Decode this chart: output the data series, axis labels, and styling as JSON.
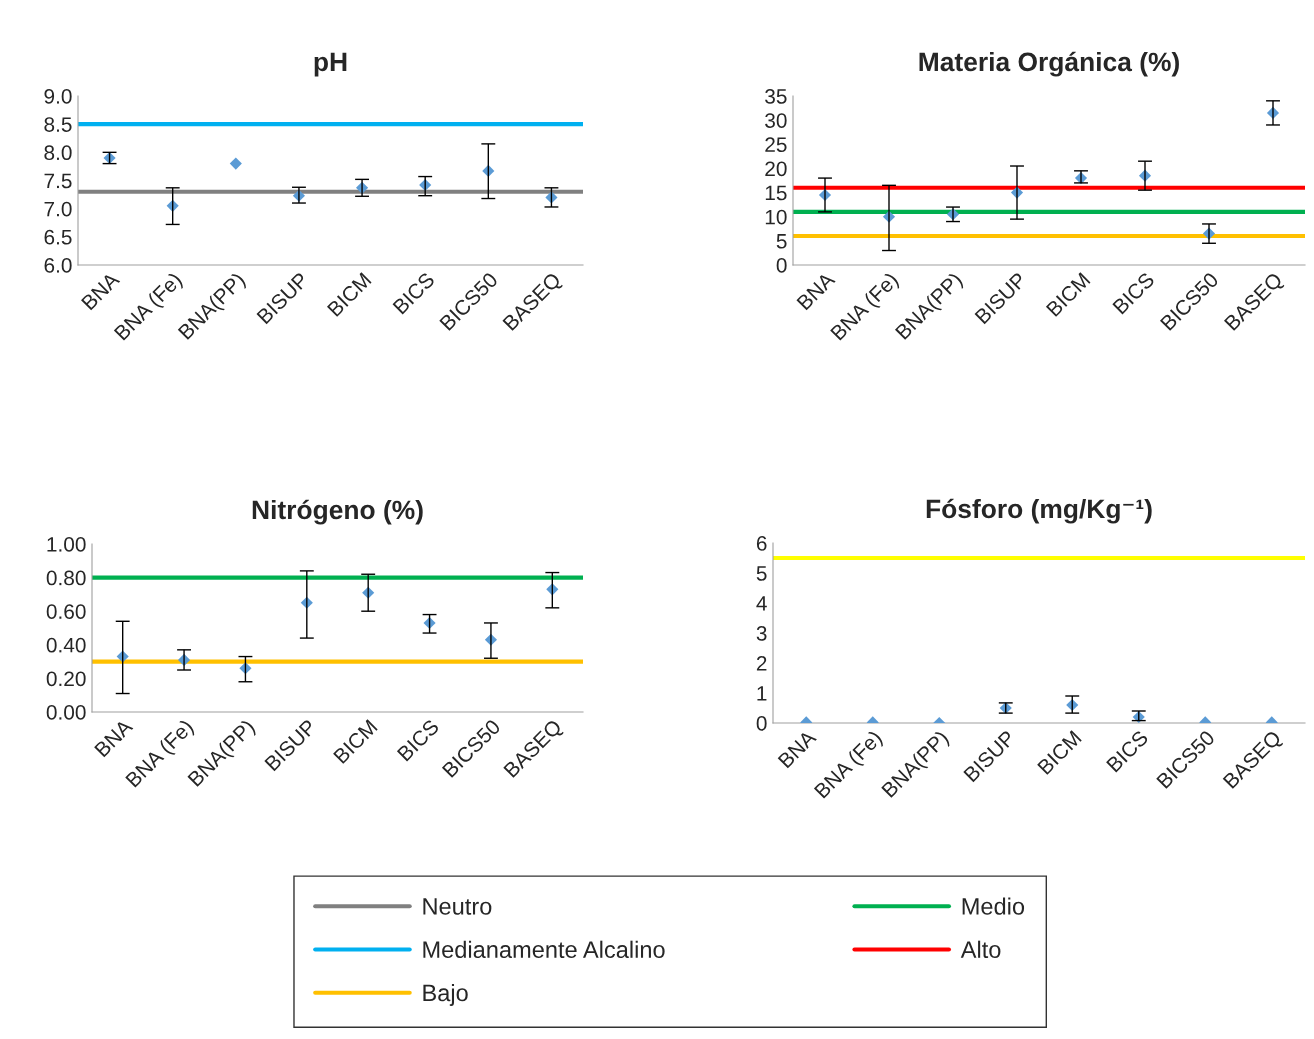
{
  "chart_data": [
    {
      "type": "scatter",
      "title": "pH",
      "categories": [
        "BNA",
        "BNA (Fe)",
        "BNA(PP)",
        "BISUP",
        "BICM",
        "BICS",
        "BICS50",
        "BASEQ"
      ],
      "marker": "diamond",
      "legend": "bottom",
      "series": [
        {
          "color": "#5b9bd5",
          "values": [
            7.9,
            7.05,
            7.8,
            7.23,
            7.37,
            7.42,
            7.67,
            7.2
          ],
          "errors": [
            [
              7.8,
              8.0
            ],
            [
              6.72,
              7.37
            ],
            null,
            [
              7.1,
              7.38
            ],
            [
              7.22,
              7.52
            ],
            [
              7.23,
              7.57
            ],
            [
              7.18,
              8.15
            ],
            [
              7.03,
              7.37
            ]
          ]
        }
      ],
      "ylim": [
        6.0,
        9.0
      ],
      "yticks": [
        {
          "value": 6.0,
          "label": "6.0"
        },
        {
          "value": 6.5,
          "label": "6.5"
        },
        {
          "value": 7.0,
          "label": "7.0"
        },
        {
          "value": 7.5,
          "label": "7.5"
        },
        {
          "value": 8.0,
          "label": "8.0"
        },
        {
          "value": 8.5,
          "label": "8.5"
        },
        {
          "value": 9.0,
          "label": "9.0"
        }
      ],
      "ref_lines": [
        {
          "axis": "y",
          "value": 7.3,
          "label": "Neutro",
          "color": "#808080"
        },
        {
          "axis": "y",
          "value": 8.5,
          "label": "Medianamente Alcalino",
          "color": "#00b0f0"
        }
      ]
    },
    {
      "type": "scatter",
      "title": "Materia Orgánica (%)",
      "categories": [
        "BNA",
        "BNA (Fe)",
        "BNA(PP)",
        "BISUP",
        "BICM",
        "BICS",
        "BICS50",
        "BASEQ"
      ],
      "marker": "diamond",
      "legend": "bottom",
      "series": [
        {
          "color": "#5b9bd5",
          "values": [
            14.5,
            10,
            10.5,
            15,
            18,
            18.5,
            6.5,
            31.5
          ],
          "errors": [
            [
              11,
              18
            ],
            [
              3,
              16.5
            ],
            [
              9,
              12
            ],
            [
              9.5,
              20.5
            ],
            [
              17,
              19.5
            ],
            [
              15.5,
              21.5
            ],
            [
              4.5,
              8.5
            ],
            [
              29,
              34
            ]
          ]
        }
      ],
      "ylim": [
        0,
        35
      ],
      "yticks": [
        0,
        5,
        10,
        15,
        20,
        25,
        30,
        35
      ],
      "ref_lines": [
        {
          "axis": "y",
          "value": 6,
          "label": "Bajo",
          "color": "#ffc000"
        },
        {
          "axis": "y",
          "value": 11,
          "label": "Medio",
          "color": "#00b050"
        },
        {
          "axis": "y",
          "value": 16,
          "label": "Alto",
          "color": "#ff0000"
        }
      ]
    },
    {
      "type": "scatter",
      "title": "Nitrógeno (%)",
      "categories": [
        "BNA",
        "BNA (Fe)",
        "BNA(PP)",
        "BISUP",
        "BICM",
        "BICS",
        "BICS50",
        "BASEQ"
      ],
      "marker": "diamond",
      "series": [
        {
          "color": "#5b9bd5",
          "values": [
            0.33,
            0.31,
            0.26,
            0.65,
            0.71,
            0.53,
            0.43,
            0.73
          ],
          "errors": [
            [
              0.11,
              0.54
            ],
            [
              0.25,
              0.37
            ],
            [
              0.18,
              0.33
            ],
            [
              0.44,
              0.84
            ],
            [
              0.6,
              0.82
            ],
            [
              0.47,
              0.58
            ],
            [
              0.32,
              0.53
            ],
            [
              0.62,
              0.83
            ]
          ]
        }
      ],
      "ylim": [
        0,
        1.0
      ],
      "yticks": [
        {
          "value": 0,
          "label": "0.00"
        },
        {
          "value": 0.2,
          "label": "0.20"
        },
        {
          "value": 0.4,
          "label": "0.40"
        },
        {
          "value": 0.6,
          "label": "0.60"
        },
        {
          "value": 0.8,
          "label": "0.80"
        },
        {
          "value": 1.0,
          "label": "1.00"
        }
      ],
      "ref_lines": [
        {
          "axis": "y",
          "value": 0.8,
          "color": "#00b050"
        },
        {
          "axis": "y",
          "value": 0.3,
          "color": "#ffc000"
        }
      ]
    },
    {
      "type": "scatter",
      "title": "Fósforo (mg/Kg⁻¹)",
      "categories": [
        "BNA",
        "BNA (Fe)",
        "BNA(PP)",
        "BISUP",
        "BICM",
        "BICS",
        "BICS50",
        "BASEQ"
      ],
      "marker": "diamond",
      "series": [
        {
          "color": "#5b9bd5",
          "values": [
            0.02,
            0.02,
            0.0,
            0.5,
            0.6,
            0.2,
            0.02,
            0.02
          ],
          "errors": [
            null,
            null,
            null,
            [
              0.33,
              0.67
            ],
            [
              0.33,
              0.9
            ],
            [
              0.08,
              0.4
            ],
            null,
            null
          ]
        }
      ],
      "ylim": [
        0,
        6
      ],
      "yticks": [
        0,
        1,
        2,
        3,
        4,
        5,
        6
      ],
      "ref_lines": [
        {
          "axis": "y",
          "value": 5.5,
          "color": "#ffff00"
        }
      ]
    }
  ]
}
